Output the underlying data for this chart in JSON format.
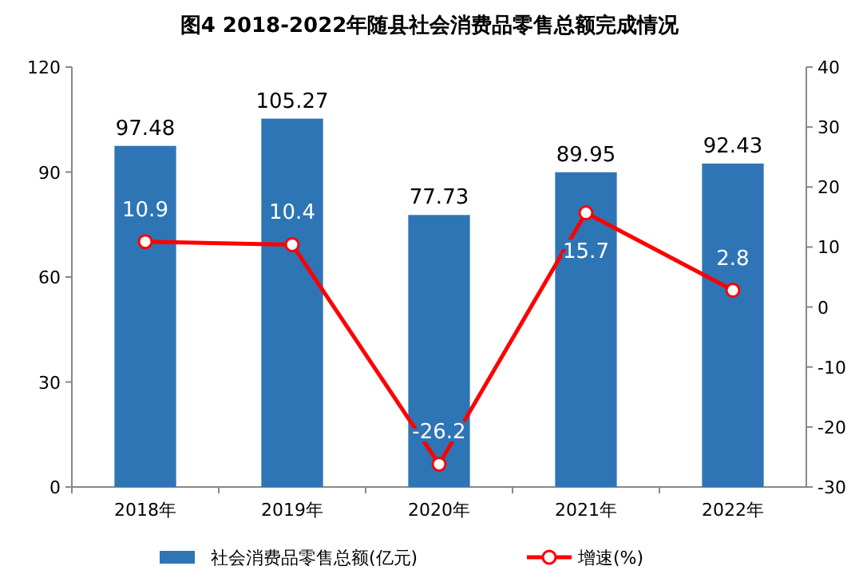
{
  "chart_data": {
    "type": "bar",
    "title": "图4  2018-2022年随县社会消费品零售总额完成情况",
    "categories": [
      "2018年",
      "2019年",
      "2020年",
      "2021年",
      "2022年"
    ],
    "series": [
      {
        "name": "社会消费品零售总额(亿元)",
        "color": "#2e75b6",
        "values": [
          97.48,
          105.27,
          77.73,
          89.95,
          92.43
        ]
      },
      {
        "name": "增速(%)",
        "type": "line",
        "axis": "y2",
        "color": "#ff0000",
        "values": [
          10.9,
          10.4,
          -26.2,
          15.7,
          2.8
        ]
      }
    ],
    "ylim": [
      0,
      120
    ],
    "yticks": [
      0,
      30,
      60,
      90,
      120
    ],
    "y2lim": [
      -30,
      40
    ],
    "y2ticks": [
      -30,
      -20,
      -10,
      0,
      10,
      20,
      30,
      40
    ],
    "marker": "circle",
    "data_labels": true,
    "legend": "bottom",
    "grid": false
  }
}
